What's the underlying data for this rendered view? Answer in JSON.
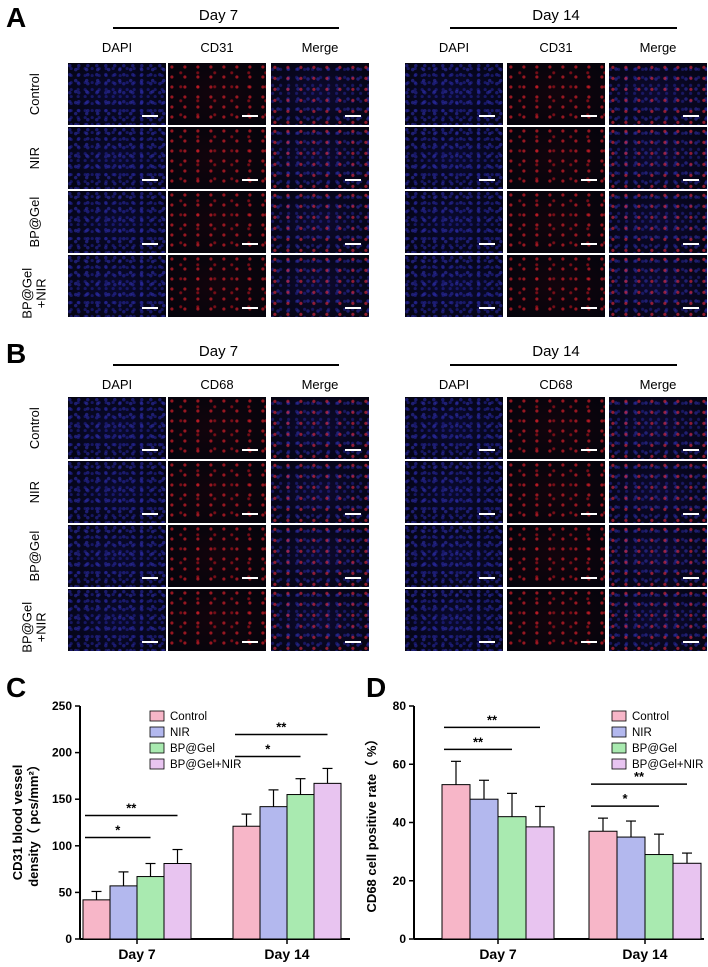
{
  "panels": {
    "A": {
      "label": "A",
      "marker": "CD31",
      "groups": [
        {
          "day": "Day 7",
          "channels": [
            "DAPI",
            "CD31",
            "Merge"
          ]
        },
        {
          "day": "Day 14",
          "channels": [
            "DAPI",
            "CD31",
            "Merge"
          ]
        }
      ],
      "rows": [
        "Control",
        "NIR",
        "BP@Gel",
        "BP@Gel\n+NIR"
      ]
    },
    "B": {
      "label": "B",
      "marker": "CD68",
      "groups": [
        {
          "day": "Day 7",
          "channels": [
            "DAPI",
            "CD68",
            "Merge"
          ]
        },
        {
          "day": "Day 14",
          "channels": [
            "DAPI",
            "CD68",
            "Merge"
          ]
        }
      ],
      "rows": [
        "Control",
        "NIR",
        "BP@Gel",
        "BP@Gel\n+NIR"
      ]
    },
    "C": {
      "label": "C"
    },
    "D": {
      "label": "D"
    }
  },
  "chart_data": [
    {
      "type": "bar",
      "panel": "C",
      "categories": [
        "Day 7",
        "Day 14"
      ],
      "ylabel": "CD31 blood vessel density（ pcs/mm²）",
      "ylim": [
        0,
        250
      ],
      "yticks": [
        0,
        50,
        100,
        150,
        200,
        250
      ],
      "legend": "top-right",
      "series": [
        {
          "name": "Control",
          "color": "#f7b6c8",
          "values": [
            42,
            121
          ],
          "errors": [
            9,
            13
          ]
        },
        {
          "name": "NIR",
          "color": "#b3b8ee",
          "values": [
            57,
            142
          ],
          "errors": [
            15,
            18
          ]
        },
        {
          "name": "BP@Gel",
          "color": "#a9eab0",
          "values": [
            67,
            155
          ],
          "errors": [
            14,
            17
          ]
        },
        {
          "name": "BP@Gel+NIR",
          "color": "#e8c4f0",
          "values": [
            81,
            167
          ],
          "errors": [
            15,
            16
          ]
        }
      ],
      "significance": [
        {
          "category": 0,
          "from": 0,
          "to": 2,
          "label": "*",
          "level": 1
        },
        {
          "category": 0,
          "from": 0,
          "to": 3,
          "label": "**",
          "level": 2
        },
        {
          "category": 1,
          "from": 0,
          "to": 2,
          "label": "*",
          "level": 1
        },
        {
          "category": 1,
          "from": 0,
          "to": 3,
          "label": "**",
          "level": 2
        }
      ]
    },
    {
      "type": "bar",
      "panel": "D",
      "categories": [
        "Day 7",
        "Day 14"
      ],
      "ylabel": "CD68 cell positive rate（ %）",
      "ylim": [
        0,
        80
      ],
      "yticks": [
        0,
        20,
        40,
        60,
        80
      ],
      "legend": "top-right",
      "series": [
        {
          "name": "Control",
          "color": "#f7b6c8",
          "values": [
            53,
            37
          ],
          "errors": [
            8,
            4.5
          ]
        },
        {
          "name": "NIR",
          "color": "#b3b8ee",
          "values": [
            48,
            35
          ],
          "errors": [
            6.5,
            5.5
          ]
        },
        {
          "name": "BP@Gel",
          "color": "#a9eab0",
          "values": [
            42,
            29
          ],
          "errors": [
            8,
            7
          ]
        },
        {
          "name": "BP@Gel+NIR",
          "color": "#e8c4f0",
          "values": [
            38.5,
            26
          ],
          "errors": [
            7,
            3.5
          ]
        }
      ],
      "significance": [
        {
          "category": 0,
          "from": 0,
          "to": 2,
          "label": "**",
          "level": 1
        },
        {
          "category": 0,
          "from": 0,
          "to": 3,
          "label": "**",
          "level": 2
        },
        {
          "category": 1,
          "from": 0,
          "to": 2,
          "label": "*",
          "level": 1
        },
        {
          "category": 1,
          "from": 0,
          "to": 3,
          "label": "**",
          "level": 2
        }
      ]
    }
  ]
}
